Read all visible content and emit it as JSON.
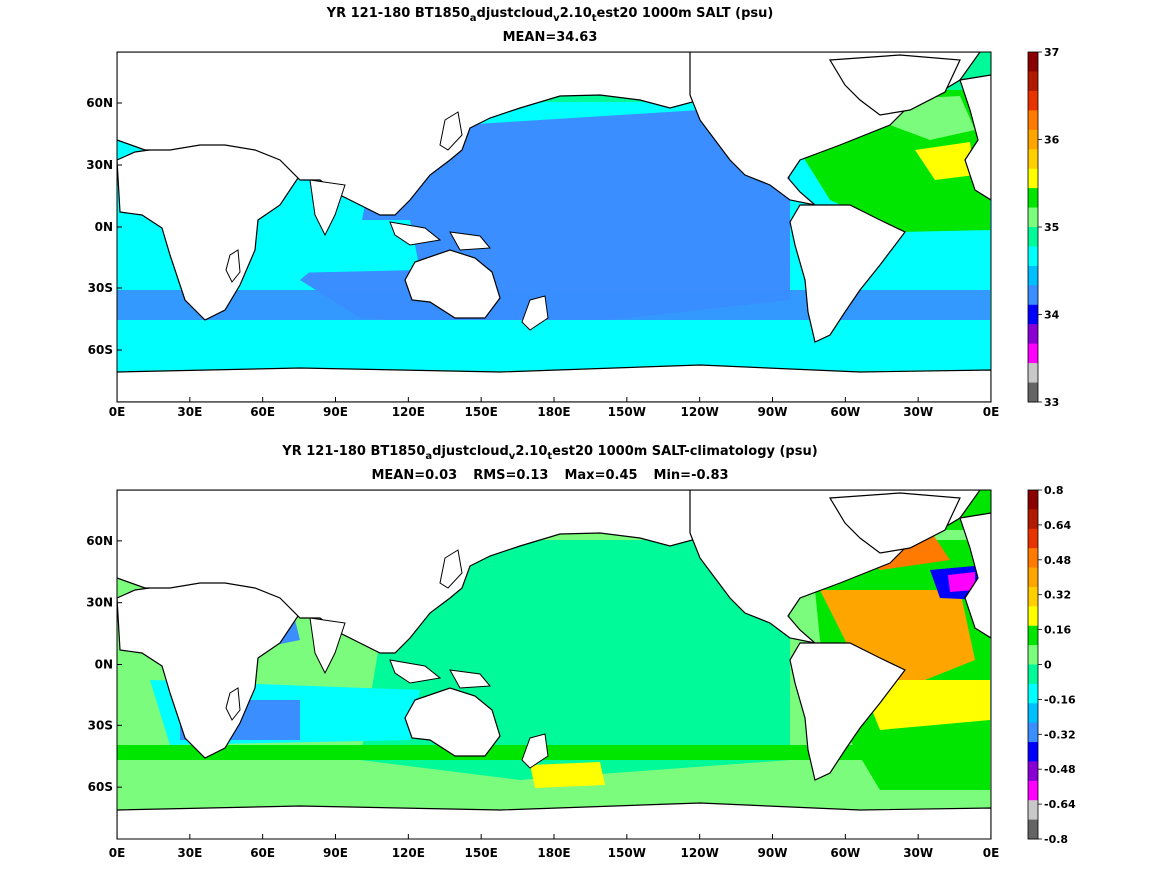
{
  "panels": [
    {
      "title_parts": [
        "YR 121-180 BT1850",
        "a",
        "djustcloud",
        "v",
        "2.10",
        "t",
        "est20 1000m SALT (psu)"
      ],
      "stats": [
        "MEAN=34.63"
      ],
      "colorbar": {
        "labels": [
          "37",
          "36",
          "35",
          "34",
          "33"
        ],
        "colors": [
          "#8b0000",
          "#b01a00",
          "#e83200",
          "#ff7a00",
          "#ffa500",
          "#ffcf00",
          "#ffff00",
          "#00e600",
          "#7cfc7c",
          "#00fa9a",
          "#00ffff",
          "#00bfff",
          "#3a8eff",
          "#0000ff",
          "#8a00d4",
          "#ff00ff",
          "#c8c8c8",
          "#646464"
        ]
      }
    },
    {
      "title_parts": [
        "YR 121-180 BT1850",
        "a",
        "djustcloud",
        "v",
        "2.10",
        "t",
        "est20 1000m SALT-climatology (psu)"
      ],
      "stats": [
        "MEAN=0.03",
        "RMS=0.13",
        "Max=0.45",
        "Min=-0.83"
      ],
      "colorbar": {
        "labels": [
          "0.8",
          "0.64",
          "0.48",
          "0.32",
          "0.16",
          "0",
          "-0.16",
          "-0.32",
          "-0.48",
          "-0.64",
          "-0.8"
        ],
        "colors": [
          "#8b0000",
          "#b01a00",
          "#e83200",
          "#ff7a00",
          "#ffa500",
          "#ffcf00",
          "#ffff00",
          "#00e600",
          "#7cfc7c",
          "#00fa9a",
          "#00ffff",
          "#00bfff",
          "#3a8eff",
          "#0000ff",
          "#8a00d4",
          "#ff00ff",
          "#c8c8c8",
          "#646464"
        ]
      }
    }
  ],
  "axes": {
    "lat_labels": [
      "60N",
      "30N",
      "0N",
      "30S",
      "60S"
    ],
    "lon_labels": [
      "0E",
      "30E",
      "60E",
      "90E",
      "120E",
      "150E",
      "180E",
      "150W",
      "120W",
      "90W",
      "60W",
      "30W",
      "0E"
    ]
  }
}
